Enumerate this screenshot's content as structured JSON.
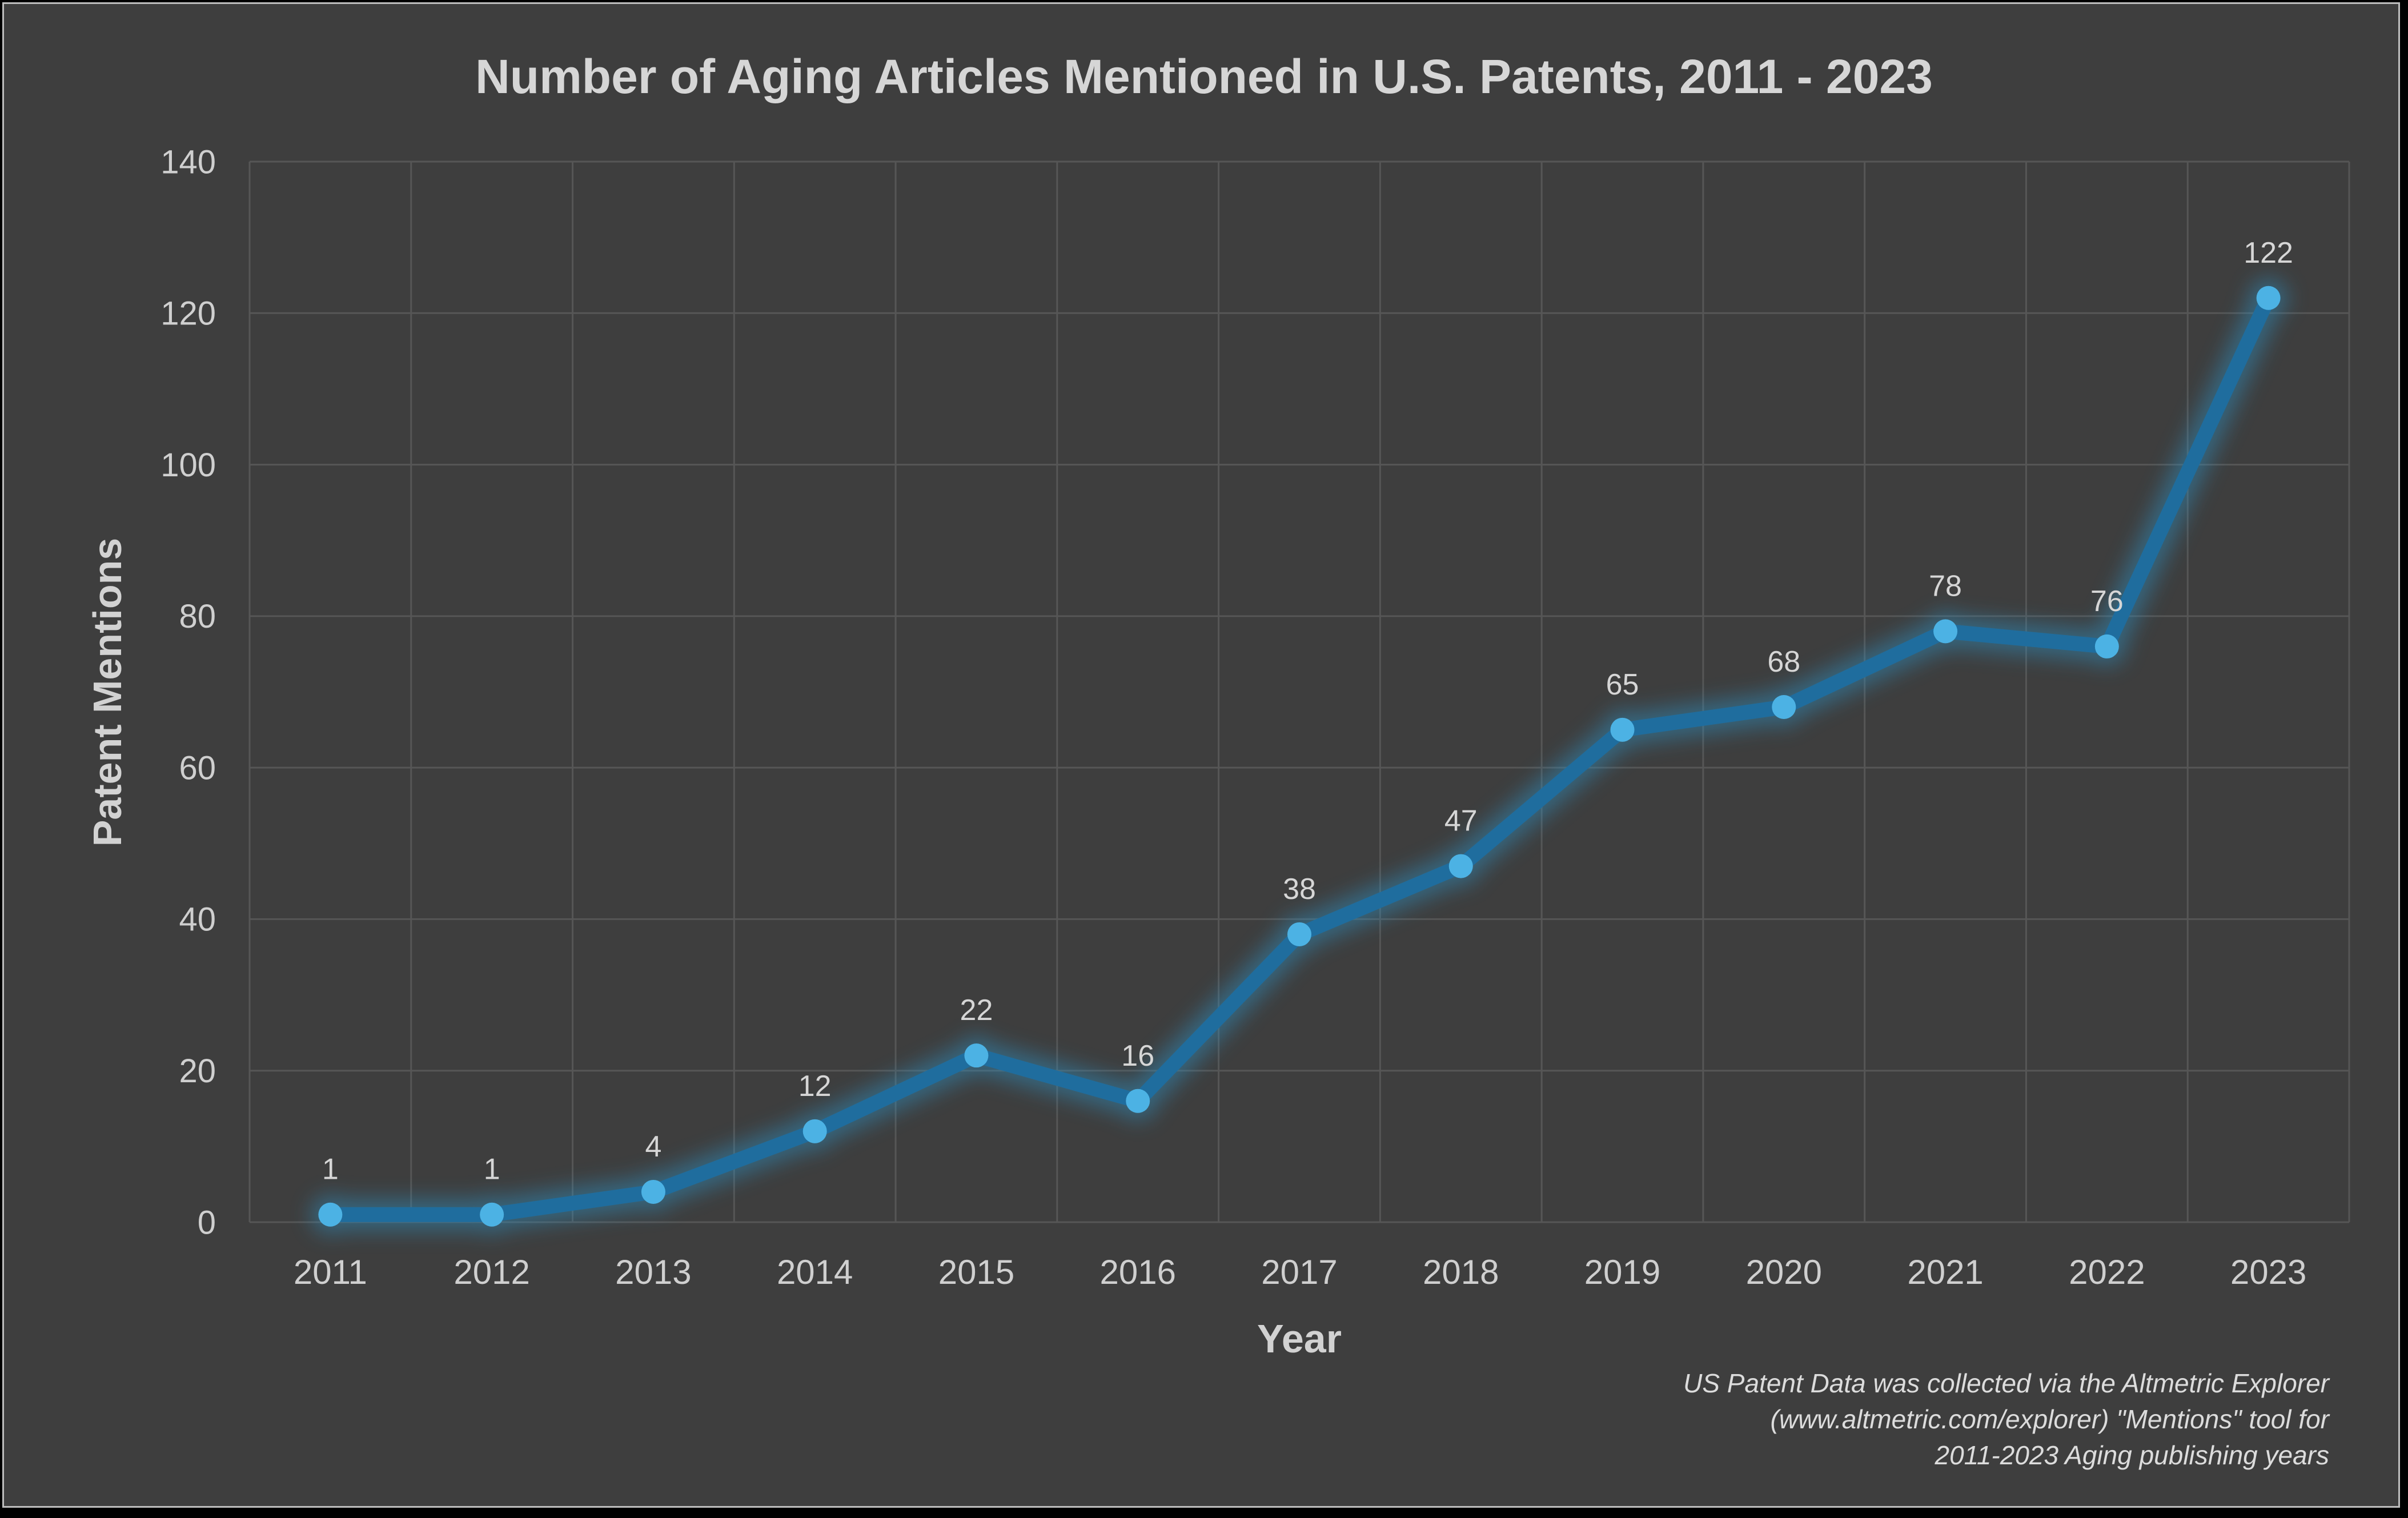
{
  "page": {
    "outer_background": "#000000",
    "frame_border_color": "#bdbdbd",
    "chart_background": "#3e3e3e"
  },
  "header": {
    "title": "Number of Aging Articles Mentioned in U.S. Patents, 2011 - 2023"
  },
  "footnote": {
    "lines": [
      "US Patent Data was collected via the Altmetric Explorer",
      "(www.altmetric.com/explorer) \"Mentions\" tool for",
      "2011-2023 Aging publishing years"
    ]
  },
  "chart_data": {
    "type": "line",
    "title": "Number of Aging Articles Mentioned in U.S. Patents, 2011 - 2023",
    "xlabel": "Year",
    "ylabel": "Patent Mentions",
    "categories": [
      "2011",
      "2012",
      "2013",
      "2014",
      "2015",
      "2016",
      "2017",
      "2018",
      "2019",
      "2020",
      "2021",
      "2022",
      "2023"
    ],
    "values": [
      1,
      1,
      4,
      12,
      22,
      16,
      38,
      47,
      65,
      68,
      78,
      76,
      122
    ],
    "ylim": [
      0,
      140
    ],
    "ytick_step": 20,
    "grid": true,
    "legend_position": "none",
    "data_labels_shown": true,
    "colors": {
      "line": "#1f6d9e",
      "marker": "#4cb2e4",
      "glow": "#2e8fc0",
      "grid": "#565656",
      "text": "#d6d6d6"
    }
  }
}
